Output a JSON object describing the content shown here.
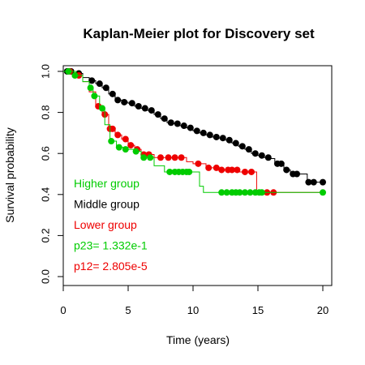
{
  "chart_data": {
    "type": "line",
    "title": "Kaplan-Meier plot for Discovery set",
    "xlabel": "Time (years)",
    "ylabel": "Survival probability",
    "xlim": [
      0,
      20
    ],
    "ylim": [
      0,
      1
    ],
    "x_ticks": [
      0,
      5,
      10,
      15,
      20
    ],
    "y_ticks": [
      0.0,
      0.2,
      0.4,
      0.6,
      0.8,
      1.0
    ],
    "x_tick_labels": [
      "0",
      "5",
      "10",
      "15",
      "20"
    ],
    "y_tick_labels": [
      "0.0",
      "0.2",
      "0.4",
      "0.6",
      "0.8",
      "1.0"
    ],
    "grid": false,
    "step": true,
    "legend_placement": "bottom-left",
    "series": [
      {
        "name": "Middle group",
        "color": "#000000",
        "curve": [
          [
            0,
            1.0
          ],
          [
            1,
            0.99
          ],
          [
            1.5,
            0.97
          ],
          [
            2,
            0.955
          ],
          [
            2.5,
            0.94
          ],
          [
            3,
            0.92
          ],
          [
            3.5,
            0.89
          ],
          [
            4,
            0.86
          ],
          [
            4.5,
            0.85
          ],
          [
            5,
            0.845
          ],
          [
            5.5,
            0.83
          ],
          [
            6,
            0.82
          ],
          [
            6.5,
            0.81
          ],
          [
            7,
            0.79
          ],
          [
            7.5,
            0.77
          ],
          [
            8,
            0.75
          ],
          [
            8.5,
            0.745
          ],
          [
            9,
            0.735
          ],
          [
            9.5,
            0.725
          ],
          [
            10,
            0.71
          ],
          [
            10.5,
            0.7
          ],
          [
            11,
            0.69
          ],
          [
            11.5,
            0.68
          ],
          [
            12,
            0.675
          ],
          [
            12.5,
            0.665
          ],
          [
            13,
            0.65
          ],
          [
            13.5,
            0.635
          ],
          [
            14,
            0.62
          ],
          [
            14.5,
            0.6
          ],
          [
            15,
            0.59
          ],
          [
            15.5,
            0.58
          ],
          [
            16,
            0.575
          ],
          [
            16.3,
            0.55
          ],
          [
            17,
            0.52
          ],
          [
            17.5,
            0.5
          ],
          [
            18.3,
            0.5
          ],
          [
            18.8,
            0.46
          ],
          [
            20,
            0.46
          ]
        ],
        "censored": [
          [
            0.3,
            1.0
          ],
          [
            0.6,
            1.0
          ],
          [
            1.2,
            0.99
          ],
          [
            2.2,
            0.955
          ],
          [
            2.8,
            0.94
          ],
          [
            3.3,
            0.92
          ],
          [
            3.8,
            0.89
          ],
          [
            4.2,
            0.86
          ],
          [
            4.7,
            0.85
          ],
          [
            5.3,
            0.845
          ],
          [
            5.8,
            0.83
          ],
          [
            6.3,
            0.82
          ],
          [
            6.8,
            0.81
          ],
          [
            7.3,
            0.79
          ],
          [
            7.8,
            0.77
          ],
          [
            8.3,
            0.75
          ],
          [
            8.8,
            0.745
          ],
          [
            9.3,
            0.735
          ],
          [
            9.8,
            0.725
          ],
          [
            10.3,
            0.71
          ],
          [
            10.8,
            0.7
          ],
          [
            11.3,
            0.69
          ],
          [
            11.8,
            0.68
          ],
          [
            12.3,
            0.675
          ],
          [
            12.8,
            0.665
          ],
          [
            13.3,
            0.65
          ],
          [
            13.8,
            0.635
          ],
          [
            14.3,
            0.62
          ],
          [
            14.8,
            0.6
          ],
          [
            15.3,
            0.59
          ],
          [
            15.8,
            0.58
          ],
          [
            16.5,
            0.55
          ],
          [
            16.8,
            0.55
          ],
          [
            17.2,
            0.52
          ],
          [
            17.7,
            0.5
          ],
          [
            18.0,
            0.5
          ],
          [
            18.9,
            0.46
          ],
          [
            19.3,
            0.46
          ],
          [
            20,
            0.46
          ]
        ]
      },
      {
        "name": "Lower group",
        "color": "#ee0000",
        "curve": [
          [
            0,
            1.0
          ],
          [
            1,
            0.98
          ],
          [
            1.5,
            0.95
          ],
          [
            2,
            0.9
          ],
          [
            2.5,
            0.83
          ],
          [
            3,
            0.79
          ],
          [
            3.5,
            0.72
          ],
          [
            4,
            0.69
          ],
          [
            4.5,
            0.67
          ],
          [
            5,
            0.64
          ],
          [
            5.5,
            0.62
          ],
          [
            6,
            0.595
          ],
          [
            7,
            0.58
          ],
          [
            9.5,
            0.56
          ],
          [
            10,
            0.55
          ],
          [
            11,
            0.53
          ],
          [
            12,
            0.52
          ],
          [
            13.5,
            0.51
          ],
          [
            14.9,
            0.41
          ],
          [
            20,
            0.41
          ]
        ],
        "censored": [
          [
            0.5,
            1.0
          ],
          [
            1.2,
            0.98
          ],
          [
            2.7,
            0.83
          ],
          [
            3.2,
            0.79
          ],
          [
            3.6,
            0.72
          ],
          [
            3.8,
            0.72
          ],
          [
            4.2,
            0.69
          ],
          [
            4.8,
            0.67
          ],
          [
            5.2,
            0.64
          ],
          [
            5.7,
            0.62
          ],
          [
            6.2,
            0.595
          ],
          [
            6.6,
            0.595
          ],
          [
            7.5,
            0.58
          ],
          [
            8.1,
            0.58
          ],
          [
            8.6,
            0.58
          ],
          [
            9.1,
            0.58
          ],
          [
            10.4,
            0.55
          ],
          [
            11.2,
            0.53
          ],
          [
            11.8,
            0.53
          ],
          [
            12.2,
            0.52
          ],
          [
            12.7,
            0.52
          ],
          [
            13.0,
            0.52
          ],
          [
            13.4,
            0.52
          ],
          [
            14.0,
            0.51
          ],
          [
            14.5,
            0.51
          ],
          [
            15.7,
            0.41
          ],
          [
            16.2,
            0.41
          ]
        ]
      },
      {
        "name": "Higher group",
        "color": "#00cc00",
        "curve": [
          [
            0,
            1.0
          ],
          [
            1,
            0.98
          ],
          [
            1.5,
            0.95
          ],
          [
            2,
            0.92
          ],
          [
            2.3,
            0.88
          ],
          [
            2.8,
            0.82
          ],
          [
            3.2,
            0.74
          ],
          [
            3.6,
            0.66
          ],
          [
            4.1,
            0.63
          ],
          [
            5,
            0.62
          ],
          [
            5.5,
            0.61
          ],
          [
            6,
            0.58
          ],
          [
            7,
            0.54
          ],
          [
            7.8,
            0.51
          ],
          [
            10.5,
            0.44
          ],
          [
            10.8,
            0.41
          ],
          [
            20,
            0.41
          ]
        ],
        "censored": [
          [
            0.4,
            1.0
          ],
          [
            0.9,
            0.98
          ],
          [
            2.1,
            0.92
          ],
          [
            2.4,
            0.88
          ],
          [
            3.0,
            0.82
          ],
          [
            3.7,
            0.66
          ],
          [
            4.3,
            0.63
          ],
          [
            4.8,
            0.62
          ],
          [
            5.6,
            0.61
          ],
          [
            6.2,
            0.58
          ],
          [
            6.7,
            0.58
          ],
          [
            8.2,
            0.51
          ],
          [
            8.6,
            0.51
          ],
          [
            8.9,
            0.51
          ],
          [
            9.2,
            0.51
          ],
          [
            9.5,
            0.51
          ],
          [
            9.7,
            0.51
          ],
          [
            12.2,
            0.41
          ],
          [
            12.6,
            0.41
          ],
          [
            13.0,
            0.41
          ],
          [
            13.3,
            0.41
          ],
          [
            13.6,
            0.41
          ],
          [
            14.0,
            0.41
          ],
          [
            14.4,
            0.41
          ],
          [
            14.8,
            0.41
          ],
          [
            15.1,
            0.41
          ],
          [
            15.3,
            0.41
          ],
          [
            20,
            0.41
          ]
        ]
      }
    ],
    "annotations": [
      {
        "text": "Higher group",
        "color": "#00cc00"
      },
      {
        "text": "Middle group",
        "color": "#000000"
      },
      {
        "text": "Lower group",
        "color": "#ee0000"
      },
      {
        "text": "p23= 1.332e-1",
        "color": "#00cc00"
      },
      {
        "text": "p12= 2.805e-5",
        "color": "#ee0000"
      }
    ]
  }
}
